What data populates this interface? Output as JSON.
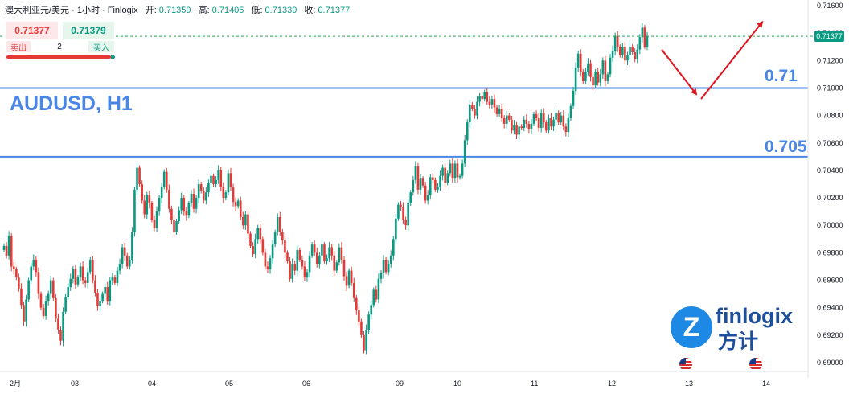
{
  "header": {
    "symbol_text": "澳大利亚元/美元 · 1小时 · Finlogix",
    "open_label": "开:",
    "open": "0.71359",
    "high_label": "高:",
    "high": "0.71405",
    "low_label": "低:",
    "low": "0.71339",
    "close_label": "收:",
    "close": "0.71377"
  },
  "trade_panel": {
    "sell_price": "0.71377",
    "buy_price": "0.71379",
    "sell_label": "卖出",
    "quantity": "2",
    "buy_label": "买入"
  },
  "price_tag": "0.71377",
  "logo": {
    "mark": "Z",
    "text": "finlogix",
    "cn_text": "方计"
  },
  "colors": {
    "up": "#089981",
    "down": "#e53935",
    "level_line": "#4a86e8",
    "arrow": "#e0141e",
    "price_line": "#26a65b"
  },
  "chart_data": {
    "type": "candlestick",
    "title": "AUDUSD, H1",
    "y_range": [
      0.6893,
      0.716
    ],
    "y_ticks": [
      "0.71600",
      "0.71400",
      "0.71200",
      "0.71000",
      "0.70800",
      "0.70600",
      "0.70400",
      "0.70200",
      "0.70000",
      "0.69800",
      "0.69600",
      "0.69400",
      "0.69200",
      "0.69000"
    ],
    "x_ticks": [
      "2月",
      "03",
      "04",
      "05",
      "06",
      "09",
      "10",
      "11",
      "12",
      "13",
      "14"
    ],
    "levels": [
      {
        "value": 0.71,
        "label": "0.71"
      },
      {
        "value": 0.705,
        "label": "0.705"
      }
    ],
    "current_price": 0.71377,
    "projection": [
      {
        "x": "12",
        "y": 0.7128
      },
      {
        "x": "13",
        "y": 0.7092
      },
      {
        "x": "14",
        "y": 0.7148
      }
    ],
    "closes": [
      0.6985,
      0.6978,
      0.6992,
      0.697,
      0.6968,
      0.6962,
      0.6954,
      0.6942,
      0.693,
      0.6946,
      0.696,
      0.697,
      0.6975,
      0.6966,
      0.695,
      0.694,
      0.6934,
      0.6945,
      0.695,
      0.696,
      0.6947,
      0.6932,
      0.6924,
      0.6916,
      0.6937,
      0.6948,
      0.6955,
      0.6961,
      0.6968,
      0.6957,
      0.6962,
      0.697,
      0.696,
      0.6958,
      0.6966,
      0.6975,
      0.696,
      0.6951,
      0.6941,
      0.6945,
      0.695,
      0.6955,
      0.6945,
      0.696,
      0.6962,
      0.6958,
      0.6967,
      0.6972,
      0.6984,
      0.6978,
      0.697,
      0.6975,
      0.6995,
      0.7026,
      0.7042,
      0.703,
      0.7018,
      0.7008,
      0.7022,
      0.7016,
      0.7004,
      0.6998,
      0.701,
      0.702,
      0.7028,
      0.7039,
      0.7026,
      0.7012,
      0.7004,
      0.6995,
      0.7003,
      0.7011,
      0.702,
      0.701,
      0.7007,
      0.7016,
      0.7023,
      0.7012,
      0.702,
      0.703,
      0.7025,
      0.7018,
      0.7024,
      0.7031,
      0.7036,
      0.703,
      0.7033,
      0.704,
      0.7028,
      0.702,
      0.7024,
      0.7038,
      0.7028,
      0.7017,
      0.7014,
      0.7018,
      0.7006,
      0.7,
      0.7008,
      0.6994,
      0.6985,
      0.6979,
      0.699,
      0.6998,
      0.699,
      0.698,
      0.697,
      0.6968,
      0.6976,
      0.6986,
      0.6995,
      0.7006,
      0.6995,
      0.6989,
      0.698,
      0.6974,
      0.6961,
      0.6972,
      0.6967,
      0.6982,
      0.6975,
      0.697,
      0.6962,
      0.6966,
      0.6978,
      0.6986,
      0.698,
      0.6972,
      0.6978,
      0.6986,
      0.6974,
      0.6976,
      0.6984,
      0.6978,
      0.6967,
      0.6973,
      0.6984,
      0.6975,
      0.6963,
      0.6956,
      0.6967,
      0.6958,
      0.6947,
      0.6938,
      0.693,
      0.692,
      0.6909,
      0.6924,
      0.6935,
      0.6942,
      0.6953,
      0.6946,
      0.6961,
      0.6965,
      0.6975,
      0.6966,
      0.6972,
      0.6978,
      0.699,
      0.7005,
      0.7015,
      0.7013,
      0.7004,
      0.7,
      0.7016,
      0.7024,
      0.7033,
      0.7043,
      0.7026,
      0.7034,
      0.7029,
      0.7018,
      0.7022,
      0.7035,
      0.7033,
      0.7026,
      0.7028,
      0.7036,
      0.7042,
      0.7031,
      0.7038,
      0.7045,
      0.7034,
      0.7045,
      0.7035,
      0.7036,
      0.7045,
      0.7062,
      0.7075,
      0.7088,
      0.7085,
      0.708,
      0.709,
      0.7094,
      0.7092,
      0.7097,
      0.709,
      0.7088,
      0.7092,
      0.7086,
      0.7081,
      0.7085,
      0.7078,
      0.7074,
      0.708,
      0.7077,
      0.7069,
      0.7073,
      0.7066,
      0.7072,
      0.7071,
      0.7077,
      0.7074,
      0.707,
      0.7074,
      0.7081,
      0.7078,
      0.7071,
      0.7082,
      0.7075,
      0.7069,
      0.7078,
      0.7072,
      0.7077,
      0.7082,
      0.7075,
      0.708,
      0.7072,
      0.7068,
      0.7078,
      0.7087,
      0.7098,
      0.7115,
      0.7125,
      0.7112,
      0.7105,
      0.7112,
      0.7118,
      0.7108,
      0.7102,
      0.7112,
      0.7104,
      0.711,
      0.712,
      0.7105,
      0.711,
      0.7122,
      0.7127,
      0.7138,
      0.713,
      0.7124,
      0.713,
      0.712,
      0.7124,
      0.713,
      0.7126,
      0.7121,
      0.7128,
      0.7137,
      0.7144,
      0.713,
      0.7138
    ]
  }
}
